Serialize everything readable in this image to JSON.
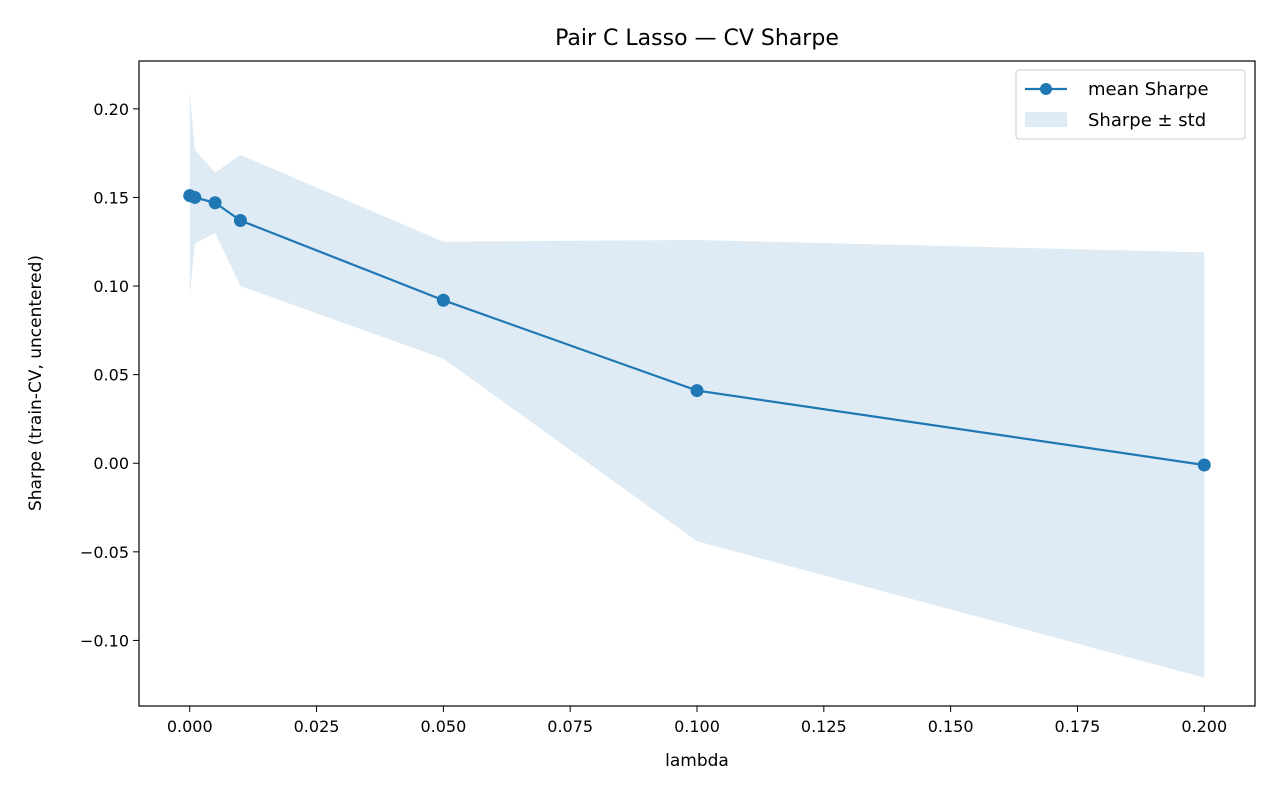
{
  "chart_data": {
    "type": "line",
    "title": "Pair C Lasso — CV Sharpe",
    "xlabel": "lambda",
    "ylabel": "Sharpe (train-CV, uncentered)",
    "xlim": [
      -0.01,
      0.21
    ],
    "ylim": [
      -0.137,
      0.227
    ],
    "xticks": [
      0.0,
      0.025,
      0.05,
      0.075,
      0.1,
      0.125,
      0.15,
      0.175,
      0.2
    ],
    "xtick_labels": [
      "0.000",
      "0.025",
      "0.050",
      "0.075",
      "0.100",
      "0.125",
      "0.150",
      "0.175",
      "0.200"
    ],
    "yticks": [
      -0.1,
      -0.05,
      0.0,
      0.05,
      0.1,
      0.15,
      0.2
    ],
    "ytick_labels": [
      "−0.10",
      "−0.05",
      "0.00",
      "0.05",
      "0.10",
      "0.15",
      "0.20"
    ],
    "grid": false,
    "legend_position": "top-right",
    "x": [
      0.0,
      0.001,
      0.005,
      0.01,
      0.05,
      0.1,
      0.2
    ],
    "series": [
      {
        "name": "mean Sharpe",
        "values": [
          0.151,
          0.15,
          0.147,
          0.137,
          0.092,
          0.041,
          -0.001
        ],
        "color": "#1f77b4"
      }
    ],
    "band": {
      "name": "Sharpe ± std",
      "lower": [
        0.094,
        0.124,
        0.13,
        0.1,
        0.059,
        -0.044,
        -0.121
      ],
      "upper": [
        0.21,
        0.177,
        0.164,
        0.174,
        0.125,
        0.126,
        0.119
      ],
      "color": "#1f77b4",
      "opacity": 0.15
    }
  }
}
